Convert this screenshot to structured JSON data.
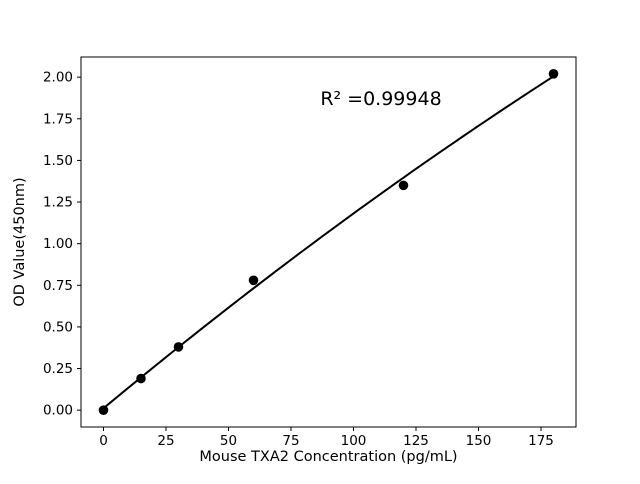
{
  "chart_data": {
    "type": "scatter",
    "title": "",
    "xlabel": "Mouse TXA2 Concentration (pg/mL)",
    "ylabel": "OD Value(450nm)",
    "annotation": "R² =0.99948",
    "r_squared": 0.99948,
    "x": [
      0,
      15,
      30,
      60,
      120,
      180
    ],
    "y": [
      0.0,
      0.19,
      0.38,
      0.78,
      1.35,
      2.02
    ],
    "fit": "quadratic",
    "fit_x_range": [
      0,
      180
    ],
    "xlim": [
      -9,
      189
    ],
    "ylim": [
      -0.101,
      2.121
    ],
    "x_tick_labels": [
      "0",
      "25",
      "50",
      "75",
      "100",
      "125",
      "150",
      "175"
    ],
    "y_tick_labels": [
      "0.00",
      "0.25",
      "0.50",
      "0.75",
      "1.00",
      "1.25",
      "1.50",
      "1.75",
      "2.00"
    ],
    "grid": false,
    "legend": "none",
    "marker_color": "#000000",
    "line_color": "#000000",
    "axis_color": "#000000",
    "background": "#ffffff"
  }
}
